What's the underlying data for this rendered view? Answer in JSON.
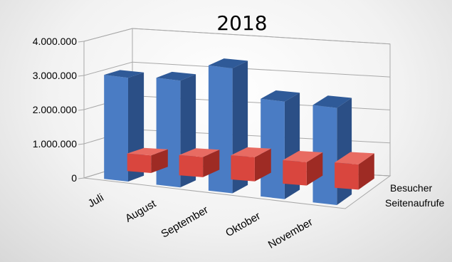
{
  "chart_data": {
    "type": "bar",
    "title": "2018",
    "categories": [
      "Juli",
      "August",
      "September",
      "Oktober",
      "November"
    ],
    "series": [
      {
        "name": "Seitenaufrufe",
        "values": [
          520000,
          600000,
          720000,
          700000,
          760000
        ],
        "color": "#c0392b",
        "front": "#d9463e",
        "top": "#e86b62",
        "side": "#9e2b24"
      },
      {
        "name": "Besucher",
        "values": [
          3050000,
          3150000,
          3700000,
          2900000,
          2900000
        ],
        "color": "#4a7cc4",
        "front": "#4a7cc4",
        "top": "#2f5a98",
        "side": "#2b4f86"
      }
    ],
    "yticks": [
      "0",
      "1.000.000",
      "2.000.000",
      "3.000.000",
      "4.000.000"
    ],
    "ylim": [
      0,
      4000000
    ],
    "grid": true,
    "legend": "series labels on depth axis (right)"
  }
}
